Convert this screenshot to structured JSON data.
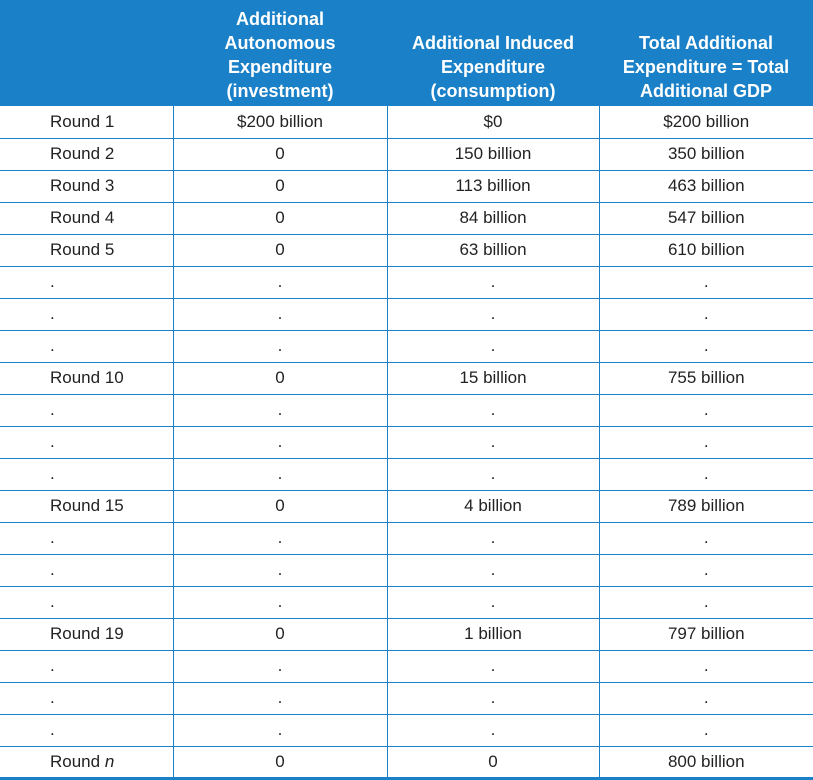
{
  "headers": [
    "",
    "Additional Autonomous Expenditure (investment)",
    "Additional Induced Expenditure (consumption)",
    "Total Additional Expenditure = Total Additional GDP"
  ],
  "header_lines": [
    [],
    [
      "Additional",
      "Autonomous",
      "Expenditure",
      "(investment)"
    ],
    [
      "Additional Induced",
      "Expenditure",
      "(consumption)"
    ],
    [
      "Total Additional",
      "Expenditure = Total",
      "Additional GDP"
    ]
  ],
  "rows": [
    [
      "Round 1",
      "$200 billion",
      "$0",
      "$200 billion"
    ],
    [
      "Round 2",
      "0",
      "150 billion",
      "350 billion"
    ],
    [
      "Round 3",
      "0",
      "113 billion",
      "463 billion"
    ],
    [
      "Round 4",
      "0",
      "84 billion",
      "547 billion"
    ],
    [
      "Round 5",
      "0",
      "63 billion",
      "610 billion"
    ],
    [
      ".",
      ".",
      ".",
      "."
    ],
    [
      ".",
      ".",
      ".",
      "."
    ],
    [
      ".",
      ".",
      ".",
      "."
    ],
    [
      "Round 10",
      "0",
      "15 billion",
      "755 billion"
    ],
    [
      ".",
      ".",
      ".",
      "."
    ],
    [
      ".",
      ".",
      ".",
      "."
    ],
    [
      ".",
      ".",
      ".",
      "."
    ],
    [
      "Round 15",
      "0",
      "4 billion",
      "789 billion"
    ],
    [
      ".",
      ".",
      ".",
      "."
    ],
    [
      ".",
      ".",
      ".",
      "."
    ],
    [
      ".",
      ".",
      ".",
      "."
    ],
    [
      "Round 19",
      "0",
      "1 billion",
      "797 billion"
    ],
    [
      ".",
      ".",
      ".",
      "."
    ],
    [
      ".",
      ".",
      ".",
      "."
    ],
    [
      ".",
      ".",
      ".",
      "."
    ],
    [
      "Round n",
      "0",
      "0",
      "800 billion"
    ]
  ],
  "colors": {
    "header_bg": "#1a80c7",
    "header_text": "#ffffff",
    "rule": "#1a80c7",
    "body_text": "#222222"
  }
}
